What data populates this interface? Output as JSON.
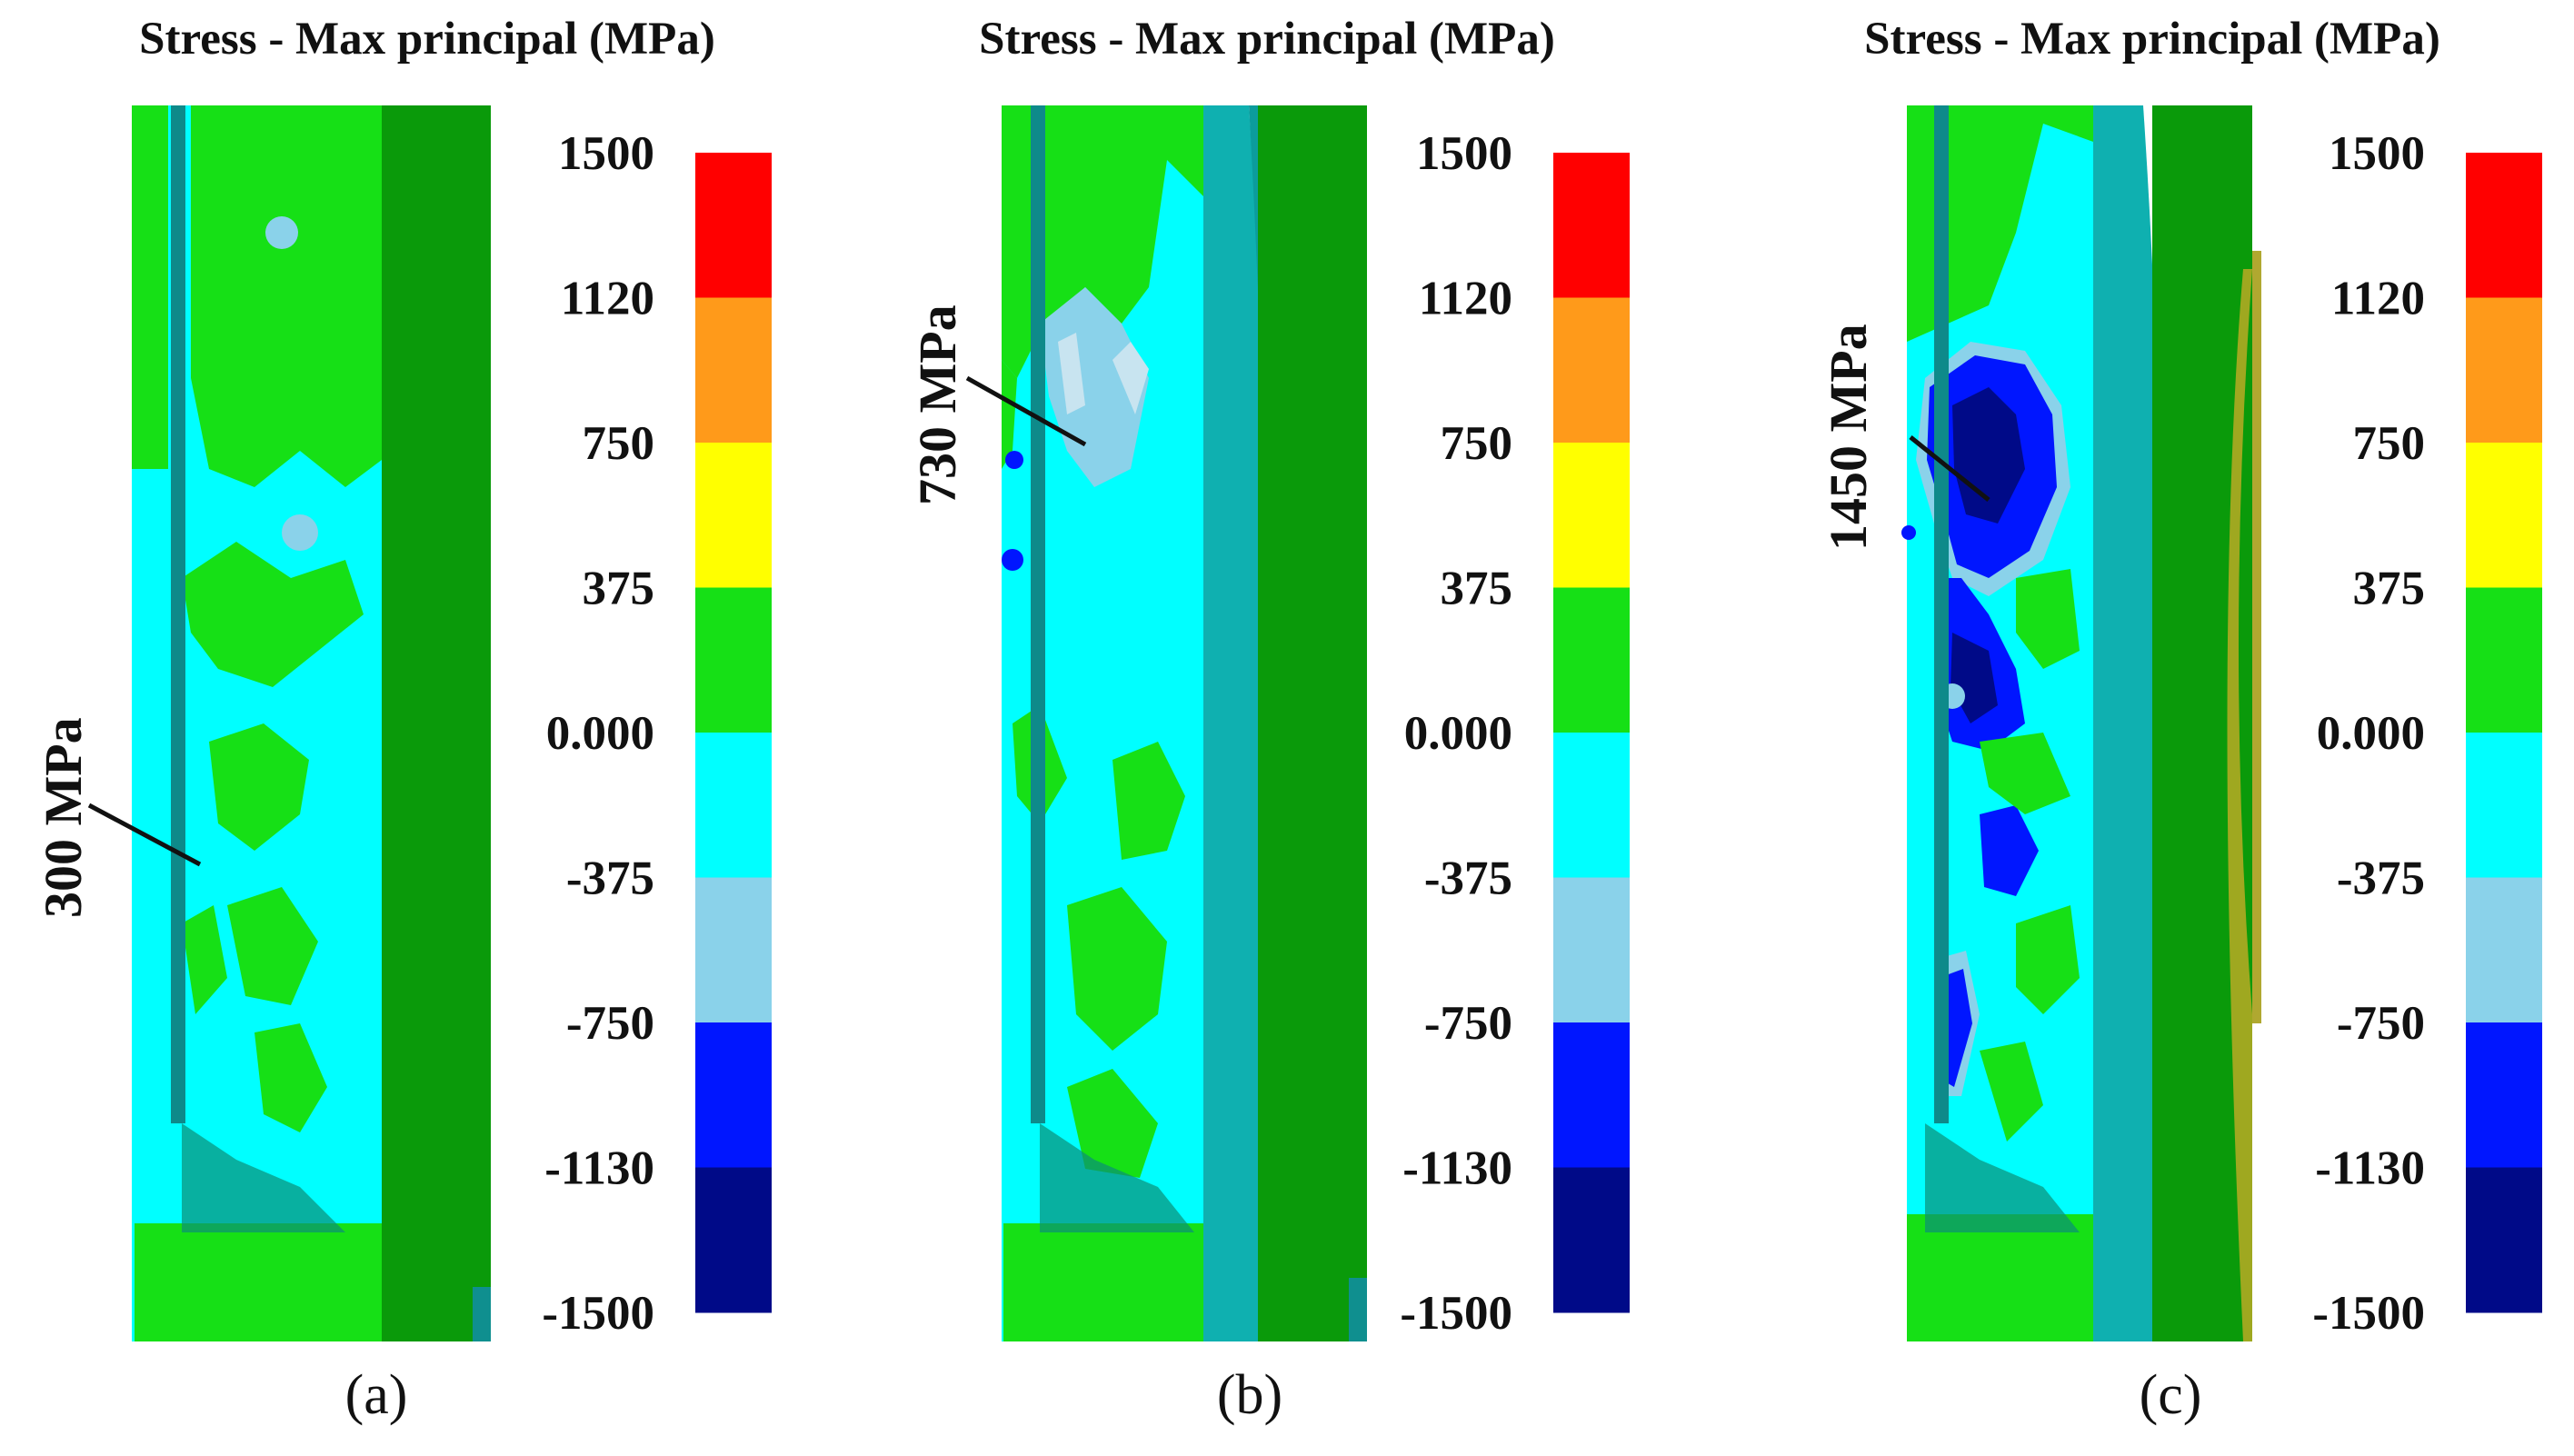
{
  "colorbar": {
    "ticks": [
      "1500",
      "1120",
      "750",
      "375",
      "0.000",
      "-375",
      "-750",
      "-1130",
      "-1500"
    ],
    "colors": [
      "#ff0000",
      "#ff9a1a",
      "#ffff00",
      "#16e016",
      "#00ffff",
      "#8ad2ea",
      "#0016ff",
      "#000a88"
    ]
  },
  "panels": [
    {
      "title": "Stress - Max principal (MPa)",
      "annotation": "300 MPa",
      "caption": "(a)"
    },
    {
      "title": "Stress - Max principal (MPa)",
      "annotation": "730 MPa",
      "caption": "(b)"
    },
    {
      "title": "Stress - Max principal (MPa)",
      "annotation": "1450 MPa",
      "caption": "(c)"
    }
  ]
}
